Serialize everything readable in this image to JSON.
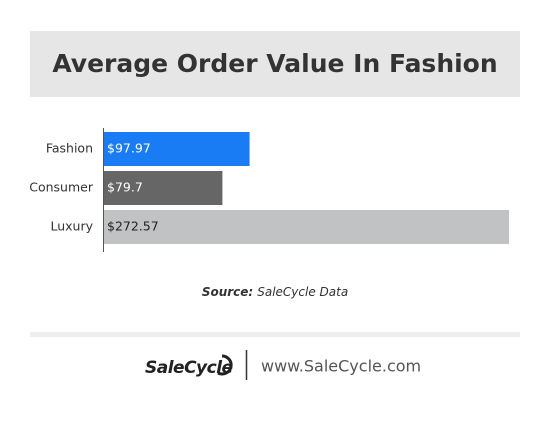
{
  "chart_data": {
    "type": "bar",
    "orientation": "horizontal",
    "title": "Average Order Value In Fashion",
    "categories": [
      "Fashion",
      "Consumer",
      "Luxury"
    ],
    "values": [
      97.97,
      79.7,
      272.57
    ],
    "value_labels": [
      "$97.97",
      "$79.7",
      "$272.57"
    ],
    "colors": [
      "#1a7cf5",
      "#666666",
      "#c0c2c4"
    ],
    "source_label": "Source:",
    "source": "SaleCycle Data"
  },
  "footer": {
    "brand": "SaleCycle",
    "url": "www.SaleCycle.com"
  }
}
